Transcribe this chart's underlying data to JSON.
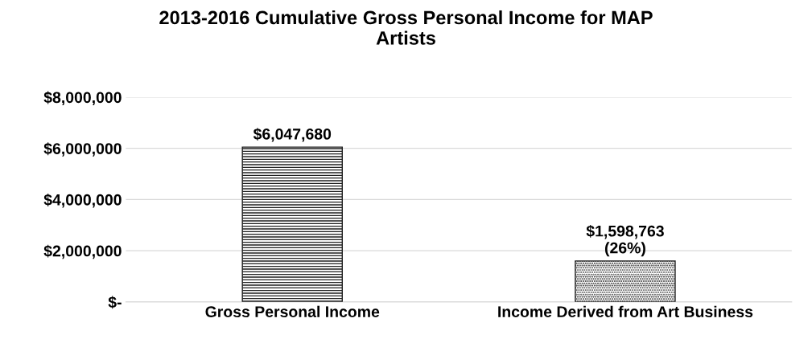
{
  "chart_data": {
    "type": "bar",
    "title": "2013-2016 Cumulative Gross Personal Income for MAP\nArtists",
    "categories": [
      "Gross Personal Income",
      "Income Derived from Art Business"
    ],
    "values": [
      6047680,
      1598763
    ],
    "value_labels": [
      "$6,047,680",
      "$1,598,763\n(26%)"
    ],
    "colors": [
      "#202020",
      "#202020"
    ],
    "ylim": [
      0,
      8000000
    ],
    "yticks": [
      {
        "value": 0,
        "label": "$-"
      },
      {
        "value": 2000000,
        "label": "$2,000,000"
      },
      {
        "value": 4000000,
        "label": "$4,000,000"
      },
      {
        "value": 6000000,
        "label": "$6,000,000"
      },
      {
        "value": 8000000,
        "label": "$8,000,000"
      }
    ],
    "grid": "y"
  }
}
